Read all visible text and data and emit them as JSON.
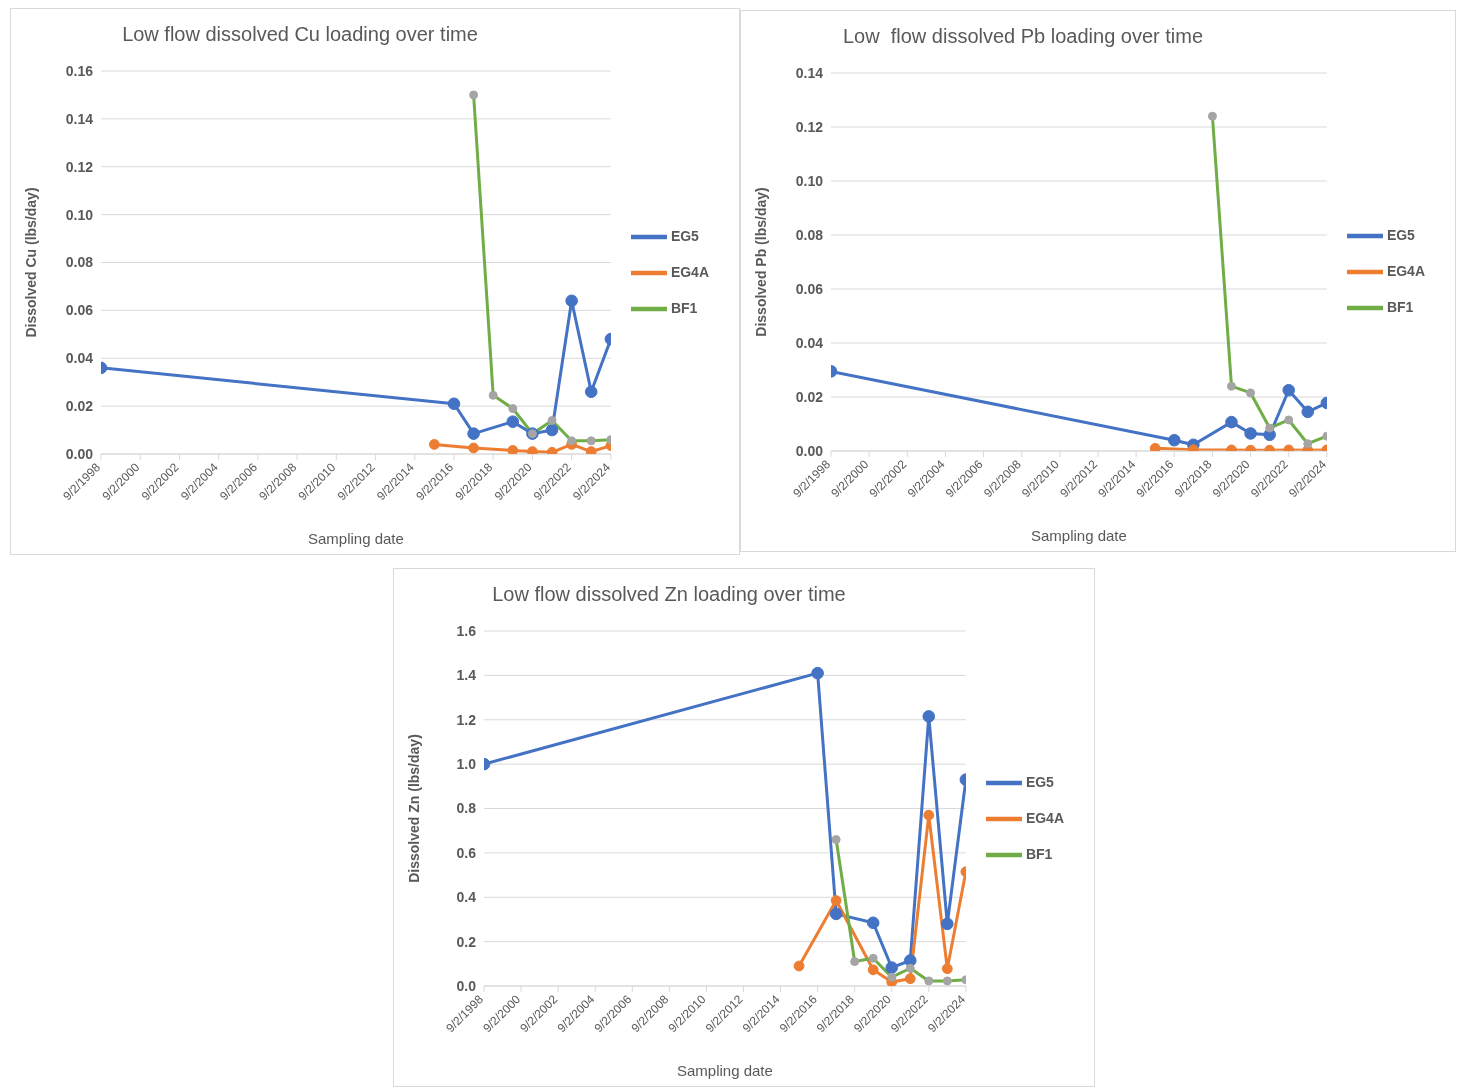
{
  "chart_data": [
    {
      "type": "line",
      "title": "Low flow dissolved Cu loading over time",
      "xlabel": "Sampling date",
      "ylabel": "Dissolved Cu (lbs/day)",
      "legend": "right",
      "grid": "y",
      "marker": "circle",
      "xlim": [
        "1998-09-02",
        "2024-09-02"
      ],
      "xticks": [
        {
          "value": "1998-09-02",
          "label": "9/2/1998"
        },
        {
          "value": "2000-09-02",
          "label": "9/2/2000"
        },
        {
          "value": "2002-09-02",
          "label": "9/2/2002"
        },
        {
          "value": "2004-09-02",
          "label": "9/2/2004"
        },
        {
          "value": "2006-09-02",
          "label": "9/2/2006"
        },
        {
          "value": "2008-09-02",
          "label": "9/2/2008"
        },
        {
          "value": "2010-09-02",
          "label": "9/2/2010"
        },
        {
          "value": "2012-09-02",
          "label": "9/2/2012"
        },
        {
          "value": "2014-09-02",
          "label": "9/2/2014"
        },
        {
          "value": "2016-09-02",
          "label": "9/2/2016"
        },
        {
          "value": "2018-09-02",
          "label": "9/2/2018"
        },
        {
          "value": "2020-09-02",
          "label": "9/2/2020"
        },
        {
          "value": "2022-09-02",
          "label": "9/2/2022"
        },
        {
          "value": "2024-09-02",
          "label": "9/2/2024"
        }
      ],
      "ylim": [
        0,
        0.16
      ],
      "yticks": [
        {
          "value": 0,
          "label": "0.00"
        },
        {
          "value": 0.02,
          "label": "0.02"
        },
        {
          "value": 0.04,
          "label": "0.04"
        },
        {
          "value": 0.06,
          "label": "0.06"
        },
        {
          "value": 0.08,
          "label": "0.08"
        },
        {
          "value": 0.1,
          "label": "0.10"
        },
        {
          "value": 0.12,
          "label": "0.12"
        },
        {
          "value": 0.14,
          "label": "0.14"
        },
        {
          "value": 0.16,
          "label": "0.16"
        }
      ],
      "series": [
        {
          "name": "EG5",
          "color": "#4472c4",
          "x": [
            "1998-09-02",
            "2016-09-02",
            "2017-09-02",
            "2019-09-02",
            "2020-09-02",
            "2021-09-02",
            "2022-09-02",
            "2023-09-02",
            "2024-09-02"
          ],
          "values": [
            0.036,
            0.021,
            0.0085,
            0.0135,
            0.0085,
            0.01,
            0.064,
            0.026,
            0.048
          ]
        },
        {
          "name": "EG4A",
          "color": "#ed7d31",
          "x": [
            "2015-09-02",
            "2017-09-02",
            "2019-09-02",
            "2020-09-02",
            "2021-09-02",
            "2022-09-02",
            "2023-09-02",
            "2024-09-02"
          ],
          "values": [
            0.004,
            0.0025,
            0.0015,
            0.001,
            0.0007,
            0.004,
            0.001,
            0.0035
          ]
        },
        {
          "name": "BF1",
          "color": "#70ad47",
          "colors": [
            "#a5a5a5",
            "#a5a5a5",
            "#a5a5a5",
            "#a5a5a5",
            "#a5a5a5",
            "#a5a5a5",
            "#a5a5a5",
            "#a5a5a5"
          ],
          "x": [
            "2017-09-02",
            "2018-09-02",
            "2019-09-02",
            "2020-09-02",
            "2021-09-02",
            "2022-09-02",
            "2023-09-02",
            "2024-09-02"
          ],
          "values": [
            0.15,
            0.0245,
            0.019,
            0.0085,
            0.014,
            0.0055,
            0.0055,
            0.006
          ]
        }
      ]
    },
    {
      "type": "line",
      "title": "Low  flow dissolved Pb loading over time",
      "xlabel": "Sampling date",
      "ylabel": "Dissolved Pb (lbs/day)",
      "legend": "right",
      "grid": "y",
      "marker": "circle",
      "xlim": [
        "1998-09-02",
        "2024-09-02"
      ],
      "xticks": [
        {
          "value": "1998-09-02",
          "label": "9/2/1998"
        },
        {
          "value": "2000-09-02",
          "label": "9/2/2000"
        },
        {
          "value": "2002-09-02",
          "label": "9/2/2002"
        },
        {
          "value": "2004-09-02",
          "label": "9/2/2004"
        },
        {
          "value": "2006-09-02",
          "label": "9/2/2006"
        },
        {
          "value": "2008-09-02",
          "label": "9/2/2008"
        },
        {
          "value": "2010-09-02",
          "label": "9/2/2010"
        },
        {
          "value": "2012-09-02",
          "label": "9/2/2012"
        },
        {
          "value": "2014-09-02",
          "label": "9/2/2014"
        },
        {
          "value": "2016-09-02",
          "label": "9/2/2016"
        },
        {
          "value": "2018-09-02",
          "label": "9/2/2018"
        },
        {
          "value": "2020-09-02",
          "label": "9/2/2020"
        },
        {
          "value": "2022-09-02",
          "label": "9/2/2022"
        },
        {
          "value": "2024-09-02",
          "label": "9/2/2024"
        }
      ],
      "ylim": [
        0,
        0.14
      ],
      "yticks": [
        {
          "value": 0,
          "label": "0.00"
        },
        {
          "value": 0.02,
          "label": "0.02"
        },
        {
          "value": 0.04,
          "label": "0.04"
        },
        {
          "value": 0.06,
          "label": "0.06"
        },
        {
          "value": 0.08,
          "label": "0.08"
        },
        {
          "value": 0.1,
          "label": "0.10"
        },
        {
          "value": 0.12,
          "label": "0.12"
        },
        {
          "value": 0.14,
          "label": "0.14"
        }
      ],
      "series": [
        {
          "name": "EG5",
          "color": "#4472c4",
          "x": [
            "1998-09-02",
            "2016-09-02",
            "2017-09-02",
            "2019-09-02",
            "2020-09-02",
            "2021-09-02",
            "2022-09-02",
            "2023-09-02",
            "2024-09-02"
          ],
          "values": [
            0.0295,
            0.004,
            0.0023,
            0.0107,
            0.0065,
            0.006,
            0.0225,
            0.0145,
            0.0178
          ]
        },
        {
          "name": "EG4A",
          "color": "#ed7d31",
          "x": [
            "2015-09-02",
            "2017-09-02",
            "2019-09-02",
            "2020-09-02",
            "2021-09-02",
            "2022-09-02",
            "2023-09-02",
            "2024-09-02"
          ],
          "values": [
            0.001,
            0.0005,
            0.0004,
            0.0003,
            0.0003,
            0.0004,
            0.0003,
            0.0004
          ]
        },
        {
          "name": "BF1",
          "color": "#70ad47",
          "colors": [
            "#a5a5a5",
            "#a5a5a5",
            "#a5a5a5",
            "#a5a5a5",
            "#a5a5a5",
            "#a5a5a5",
            "#a5a5a5"
          ],
          "x": [
            "2018-09-02",
            "2019-09-02",
            "2020-09-02",
            "2021-09-02",
            "2022-09-02",
            "2023-09-02",
            "2024-09-02"
          ],
          "values": [
            0.124,
            0.024,
            0.0215,
            0.0085,
            0.0115,
            0.0027,
            0.0055
          ]
        }
      ]
    },
    {
      "type": "line",
      "title": "Low flow dissolved Zn loading over time",
      "xlabel": "Sampling date",
      "ylabel": "Dissolved Zn (lbs/day)",
      "legend": "right",
      "grid": "y",
      "marker": "circle",
      "xlim": [
        "1998-09-02",
        "2024-09-02"
      ],
      "xticks": [
        {
          "value": "1998-09-02",
          "label": "9/2/1998"
        },
        {
          "value": "2000-09-02",
          "label": "9/2/2000"
        },
        {
          "value": "2002-09-02",
          "label": "9/2/2002"
        },
        {
          "value": "2004-09-02",
          "label": "9/2/2004"
        },
        {
          "value": "2006-09-02",
          "label": "9/2/2006"
        },
        {
          "value": "2008-09-02",
          "label": "9/2/2008"
        },
        {
          "value": "2010-09-02",
          "label": "9/2/2010"
        },
        {
          "value": "2012-09-02",
          "label": "9/2/2012"
        },
        {
          "value": "2014-09-02",
          "label": "9/2/2014"
        },
        {
          "value": "2016-09-02",
          "label": "9/2/2016"
        },
        {
          "value": "2018-09-02",
          "label": "9/2/2018"
        },
        {
          "value": "2020-09-02",
          "label": "9/2/2020"
        },
        {
          "value": "2022-09-02",
          "label": "9/2/2022"
        },
        {
          "value": "2024-09-02",
          "label": "9/2/2024"
        }
      ],
      "ylim": [
        0,
        1.6
      ],
      "yticks": [
        {
          "value": 0,
          "label": "0.0"
        },
        {
          "value": 0.2,
          "label": "0.2"
        },
        {
          "value": 0.4,
          "label": "0.4"
        },
        {
          "value": 0.6,
          "label": "0.6"
        },
        {
          "value": 0.8,
          "label": "0.8"
        },
        {
          "value": 1,
          "label": "1.0"
        },
        {
          "value": 1.2,
          "label": "1.2"
        },
        {
          "value": 1.4,
          "label": "1.4"
        },
        {
          "value": 1.6,
          "label": "1.6"
        }
      ],
      "series": [
        {
          "name": "EG5",
          "color": "#4472c4",
          "x": [
            "1998-09-02",
            "2016-09-02",
            "2017-09-02",
            "2019-09-02",
            "2020-09-02",
            "2021-09-02",
            "2022-09-02",
            "2023-09-02",
            "2024-09-02"
          ],
          "values": [
            1.0,
            1.41,
            0.325,
            0.285,
            0.083,
            0.115,
            1.215,
            0.28,
            0.93
          ]
        },
        {
          "name": "EG4A",
          "color": "#ed7d31",
          "x": [
            "2015-09-02",
            "2017-09-02",
            "2019-09-02",
            "2020-09-02",
            "2021-09-02",
            "2022-09-02",
            "2023-09-02",
            "2024-09-02"
          ],
          "values": [
            0.09,
            0.385,
            0.073,
            0.018,
            0.033,
            0.77,
            0.078,
            0.515
          ]
        },
        {
          "name": "BF1",
          "color": "#70ad47",
          "colors": [
            "#a5a5a5",
            "#a5a5a5",
            "#a5a5a5",
            "#a5a5a5",
            "#a5a5a5",
            "#a5a5a5",
            "#a5a5a5",
            "#a5a5a5"
          ],
          "x": [
            "2017-09-02",
            "2018-09-02",
            "2019-09-02",
            "2020-09-02",
            "2021-09-02",
            "2022-09-02",
            "2023-09-02",
            "2024-09-02"
          ],
          "values": [
            0.66,
            0.11,
            0.125,
            0.04,
            0.08,
            0.023,
            0.023,
            0.028
          ]
        }
      ]
    }
  ]
}
